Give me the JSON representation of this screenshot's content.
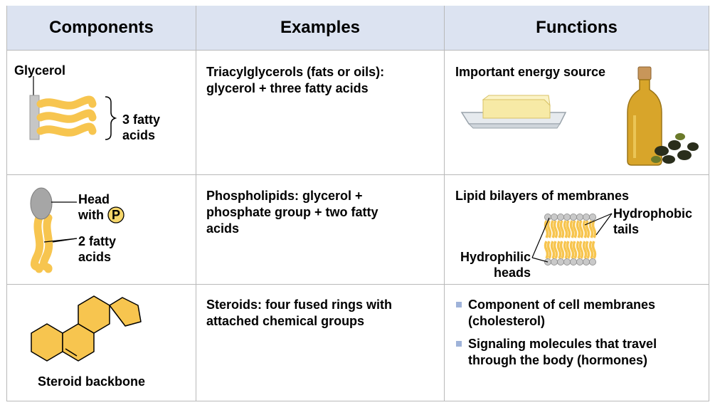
{
  "headers": [
    "Components",
    "Examples",
    "Functions"
  ],
  "rows": [
    {
      "component_label": "Glycerol",
      "component_sublabel": "3 fatty\nacids",
      "example": "Triacylglycerols (fats or oils):\nglycerol + three fatty acids",
      "function": "Important energy source"
    },
    {
      "component_label": "Head\nwith",
      "component_badge": "P",
      "component_sublabel": "2 fatty\nacids",
      "example": "Phospholipids: glycerol +\nphosphate group + two fatty\nacids",
      "function": "Lipid bilayers of membranes",
      "bilayer_labels": {
        "tails": "Hydrophobic\ntails",
        "heads": "Hydrophilic\nheads"
      }
    },
    {
      "component_label": "Steroid backbone",
      "example": "Steroids: four fused rings with\nattached chemical groups",
      "function_bullets": [
        "Component of cell membranes\n(cholesterol)",
        "Signaling molecules that travel\nthrough the body (hormones)"
      ]
    }
  ],
  "colors": {
    "header_bg": "#dce3f1",
    "lipid_fill": "#f7c54f",
    "bullet": "#9fb3d9",
    "glycerol_bar": "#c6c6c6"
  }
}
